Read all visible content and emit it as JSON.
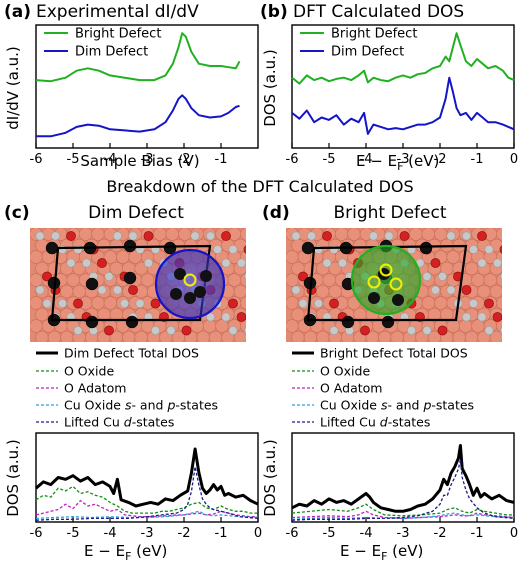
{
  "section_title": "Breakdown of the DFT Calculated DOS",
  "colors": {
    "bright": "#22b022",
    "dim": "#1414c8",
    "total": "#000000",
    "o_oxide": "#109010",
    "o_adatom": "#c020c0",
    "cu_sp": "#2ea0e0",
    "cu_d": "#1a1a8a"
  },
  "images": {
    "c_label": "Dim Defect",
    "d_label": "Bright Defect"
  },
  "chart_data": [
    {
      "id": "a",
      "type": "line",
      "panel_letter": "(a)",
      "title": "Experimental dI/dV",
      "xlabel": "Sample Bias (V)",
      "ylabel": "dI/dV (a.u.)",
      "xlim": [
        -6,
        0
      ],
      "xticks": [
        "-6",
        "-5",
        "-4",
        "-3",
        "-2",
        "-1"
      ],
      "xtick_values": [
        -6,
        -5,
        -4,
        -3,
        -2,
        -1
      ],
      "yticks": false,
      "legend": "top-left",
      "series": [
        {
          "name": "Bright Defect",
          "color": "#22b022",
          "x": [
            -6.0,
            -5.6,
            -5.2,
            -4.9,
            -4.6,
            -4.3,
            -4.0,
            -3.6,
            -3.2,
            -2.8,
            -2.5,
            -2.3,
            -2.15,
            -2.05,
            -1.95,
            -1.8,
            -1.6,
            -1.3,
            -1.0,
            -0.8,
            -0.6,
            -0.5
          ],
          "y": [
            0.58,
            0.57,
            0.6,
            0.66,
            0.68,
            0.66,
            0.62,
            0.6,
            0.58,
            0.58,
            0.62,
            0.72,
            0.86,
            0.98,
            0.95,
            0.82,
            0.72,
            0.7,
            0.7,
            0.69,
            0.68,
            0.74
          ]
        },
        {
          "name": "Dim Defect",
          "color": "#1414c8",
          "x": [
            -6.0,
            -5.6,
            -5.2,
            -4.9,
            -4.6,
            -4.3,
            -4.0,
            -3.6,
            -3.2,
            -2.8,
            -2.5,
            -2.3,
            -2.15,
            -2.05,
            -1.95,
            -1.8,
            -1.6,
            -1.3,
            -1.0,
            -0.8,
            -0.6,
            -0.5
          ],
          "y": [
            0.1,
            0.1,
            0.13,
            0.18,
            0.2,
            0.19,
            0.16,
            0.15,
            0.14,
            0.16,
            0.22,
            0.32,
            0.42,
            0.45,
            0.42,
            0.34,
            0.28,
            0.26,
            0.27,
            0.3,
            0.35,
            0.36
          ]
        }
      ]
    },
    {
      "id": "b",
      "type": "line",
      "panel_letter": "(b)",
      "title": "DFT Calculated DOS",
      "xlabel": "E − E_F (eV)",
      "xlabel_main": "E − E",
      "xlabel_sub": "F",
      "xlabel_tail": " (eV)",
      "ylabel": "DOS (a.u.)",
      "xlim": [
        -6,
        0
      ],
      "xticks": [
        "-6",
        "-5",
        "-4",
        "-3",
        "-2",
        "-1",
        "0"
      ],
      "xtick_values": [
        -6,
        -5,
        -4,
        -3,
        -2,
        -1,
        0
      ],
      "yticks": false,
      "legend": "top-left",
      "series": [
        {
          "name": "Bright Defect",
          "color": "#22b022",
          "x": [
            -6.0,
            -5.8,
            -5.6,
            -5.4,
            -5.2,
            -5.0,
            -4.8,
            -4.6,
            -4.4,
            -4.2,
            -4.05,
            -3.95,
            -3.8,
            -3.6,
            -3.4,
            -3.2,
            -3.0,
            -2.8,
            -2.6,
            -2.4,
            -2.2,
            -2.0,
            -1.85,
            -1.75,
            -1.65,
            -1.55,
            -1.45,
            -1.3,
            -1.15,
            -1.0,
            -0.85,
            -0.7,
            -0.5,
            -0.3,
            -0.15,
            0.0
          ],
          "y": [
            0.6,
            0.55,
            0.62,
            0.58,
            0.6,
            0.57,
            0.59,
            0.6,
            0.58,
            0.62,
            0.66,
            0.56,
            0.6,
            0.58,
            0.57,
            0.6,
            0.62,
            0.6,
            0.63,
            0.64,
            0.68,
            0.7,
            0.78,
            0.74,
            0.86,
            0.98,
            0.88,
            0.74,
            0.7,
            0.76,
            0.72,
            0.68,
            0.7,
            0.66,
            0.6,
            0.58
          ]
        },
        {
          "name": "Dim Defect",
          "color": "#1414c8",
          "x": [
            -6.0,
            -5.8,
            -5.6,
            -5.4,
            -5.2,
            -5.0,
            -4.8,
            -4.6,
            -4.4,
            -4.2,
            -4.05,
            -3.95,
            -3.8,
            -3.6,
            -3.4,
            -3.2,
            -3.0,
            -2.8,
            -2.6,
            -2.4,
            -2.2,
            -2.0,
            -1.85,
            -1.75,
            -1.65,
            -1.55,
            -1.45,
            -1.3,
            -1.15,
            -1.0,
            -0.85,
            -0.7,
            -0.5,
            -0.3,
            -0.15,
            0.0
          ],
          "y": [
            0.3,
            0.25,
            0.32,
            0.22,
            0.26,
            0.24,
            0.28,
            0.2,
            0.25,
            0.22,
            0.3,
            0.12,
            0.2,
            0.18,
            0.16,
            0.17,
            0.16,
            0.18,
            0.2,
            0.2,
            0.22,
            0.26,
            0.42,
            0.6,
            0.48,
            0.34,
            0.28,
            0.3,
            0.24,
            0.3,
            0.26,
            0.22,
            0.22,
            0.2,
            0.18,
            0.16
          ]
        }
      ]
    },
    {
      "id": "c",
      "type": "line",
      "panel_letter": "(c)",
      "title": "Dim Defect",
      "xlabel": "E − E_F (eV)",
      "xlabel_main": "E − E",
      "xlabel_sub": "F",
      "xlabel_tail": " (eV)",
      "ylabel": "DOS (a.u.)",
      "xlim": [
        -6,
        0
      ],
      "xticks": [
        "-6",
        "-5",
        "-4",
        "-3",
        "-2",
        "-1",
        "0"
      ],
      "xtick_values": [
        -6,
        -5,
        -4,
        -3,
        -2,
        -1,
        0
      ],
      "yticks": false,
      "legend": "above plot",
      "series": [
        {
          "name": "Dim Defect Total DOS",
          "color": "#000000",
          "width": 3,
          "dash": "",
          "x": [
            -6.0,
            -5.8,
            -5.6,
            -5.4,
            -5.2,
            -5.0,
            -4.8,
            -4.6,
            -4.4,
            -4.2,
            -4.0,
            -3.9,
            -3.8,
            -3.7,
            -3.5,
            -3.3,
            -3.1,
            -2.9,
            -2.7,
            -2.5,
            -2.3,
            -2.1,
            -1.9,
            -1.8,
            -1.7,
            -1.6,
            -1.5,
            -1.4,
            -1.3,
            -1.2,
            -1.1,
            -1.0,
            -0.9,
            -0.8,
            -0.6,
            -0.4,
            -0.2,
            0.0
          ],
          "y": [
            0.38,
            0.45,
            0.42,
            0.5,
            0.48,
            0.52,
            0.46,
            0.5,
            0.42,
            0.45,
            0.4,
            0.32,
            0.48,
            0.25,
            0.22,
            0.18,
            0.2,
            0.22,
            0.2,
            0.26,
            0.24,
            0.3,
            0.35,
            0.55,
            0.82,
            0.56,
            0.38,
            0.32,
            0.36,
            0.42,
            0.36,
            0.4,
            0.3,
            0.32,
            0.28,
            0.3,
            0.24,
            0.2
          ]
        },
        {
          "name": "O Oxide",
          "color": "#109010",
          "width": 1.3,
          "dash": "3,2",
          "x": [
            -6.0,
            -5.8,
            -5.6,
            -5.4,
            -5.2,
            -5.0,
            -4.8,
            -4.6,
            -4.4,
            -4.2,
            -4.0,
            -3.8,
            -3.6,
            -3.4,
            -3.2,
            -3.0,
            -2.8,
            -2.6,
            -2.4,
            -2.2,
            -2.0,
            -1.8,
            -1.6,
            -1.4,
            -1.2,
            -1.0,
            -0.8,
            -0.6,
            -0.4,
            -0.2,
            0.0
          ],
          "y": [
            0.25,
            0.3,
            0.28,
            0.38,
            0.35,
            0.4,
            0.32,
            0.34,
            0.3,
            0.28,
            0.22,
            0.18,
            0.12,
            0.1,
            0.1,
            0.1,
            0.1,
            0.12,
            0.12,
            0.14,
            0.16,
            0.2,
            0.22,
            0.16,
            0.14,
            0.18,
            0.14,
            0.12,
            0.12,
            0.1,
            0.1
          ]
        },
        {
          "name": "O Adatom",
          "color": "#c020c0",
          "width": 1.3,
          "dash": "3,2",
          "x": [
            -6.0,
            -5.8,
            -5.6,
            -5.4,
            -5.2,
            -5.0,
            -4.8,
            -4.6,
            -4.4,
            -4.2,
            -4.0,
            -3.8,
            -3.6,
            -3.4,
            -3.2,
            -3.0,
            -2.8,
            -2.6,
            -2.4,
            -2.2,
            -2.0,
            -1.8,
            -1.6,
            -1.4,
            -1.2,
            -1.0,
            -0.8,
            -0.6,
            -0.4,
            -0.2,
            0.0
          ],
          "y": [
            0.08,
            0.1,
            0.12,
            0.14,
            0.2,
            0.15,
            0.24,
            0.18,
            0.2,
            0.16,
            0.12,
            0.14,
            0.08,
            0.07,
            0.06,
            0.06,
            0.06,
            0.07,
            0.07,
            0.08,
            0.08,
            0.09,
            0.1,
            0.08,
            0.09,
            0.12,
            0.1,
            0.08,
            0.07,
            0.06,
            0.06
          ]
        },
        {
          "name": "Cu Oxide s- and p-states",
          "color": "#2ea0e0",
          "width": 1.3,
          "dash": "3,2",
          "x": [
            -6.0,
            -5.5,
            -5.0,
            -4.5,
            -4.0,
            -3.5,
            -3.0,
            -2.5,
            -2.0,
            -1.8,
            -1.6,
            -1.4,
            -1.2,
            -1.0,
            -0.5,
            0.0
          ],
          "y": [
            0.04,
            0.05,
            0.06,
            0.05,
            0.06,
            0.05,
            0.05,
            0.06,
            0.08,
            0.1,
            0.12,
            0.08,
            0.07,
            0.08,
            0.06,
            0.05
          ]
        },
        {
          "name": "Lifted Cu d-states",
          "color": "#1a1a8a",
          "width": 1.3,
          "dash": "3,2",
          "x": [
            -6.0,
            -5.5,
            -5.0,
            -4.5,
            -4.0,
            -3.5,
            -3.0,
            -2.6,
            -2.2,
            -2.0,
            -1.9,
            -1.8,
            -1.7,
            -1.6,
            -1.5,
            -1.4,
            -1.3,
            -1.2,
            -1.0,
            -0.8,
            -0.5,
            0.0
          ],
          "y": [
            0.02,
            0.03,
            0.03,
            0.04,
            0.04,
            0.04,
            0.06,
            0.08,
            0.1,
            0.14,
            0.2,
            0.34,
            0.62,
            0.42,
            0.26,
            0.2,
            0.16,
            0.14,
            0.12,
            0.1,
            0.06,
            0.04
          ]
        }
      ]
    },
    {
      "id": "d",
      "type": "line",
      "panel_letter": "(d)",
      "title": "Bright Defect",
      "xlabel": "E − E_F (eV)",
      "xlabel_main": "E − E",
      "xlabel_sub": "F",
      "xlabel_tail": " (eV)",
      "ylabel": "DOS (a.u.)",
      "xlim": [
        -6,
        0
      ],
      "xticks": [
        "-6",
        "-5",
        "-4",
        "-3",
        "-2",
        "-1",
        "0"
      ],
      "xtick_values": [
        -6,
        -5,
        -4,
        -3,
        -2,
        -1,
        0
      ],
      "yticks": false,
      "legend": "above plot",
      "series": [
        {
          "name": "Bright Defect Total DOS",
          "color": "#000000",
          "width": 3,
          "dash": "",
          "x": [
            -6.0,
            -5.8,
            -5.6,
            -5.4,
            -5.2,
            -5.0,
            -4.8,
            -4.6,
            -4.4,
            -4.2,
            -4.0,
            -3.9,
            -3.8,
            -3.6,
            -3.4,
            -3.2,
            -3.0,
            -2.8,
            -2.6,
            -2.4,
            -2.2,
            -2.0,
            -1.9,
            -1.8,
            -1.7,
            -1.6,
            -1.5,
            -1.45,
            -1.4,
            -1.3,
            -1.2,
            -1.1,
            -1.0,
            -0.9,
            -0.8,
            -0.6,
            -0.4,
            -0.2,
            0.0
          ],
          "y": [
            0.16,
            0.2,
            0.18,
            0.24,
            0.2,
            0.26,
            0.22,
            0.24,
            0.2,
            0.26,
            0.32,
            0.28,
            0.22,
            0.16,
            0.14,
            0.12,
            0.12,
            0.14,
            0.18,
            0.2,
            0.26,
            0.36,
            0.48,
            0.42,
            0.55,
            0.62,
            0.72,
            0.86,
            0.6,
            0.52,
            0.42,
            0.3,
            0.38,
            0.28,
            0.32,
            0.26,
            0.3,
            0.24,
            0.22
          ]
        },
        {
          "name": "O Oxide",
          "color": "#109010",
          "width": 1.3,
          "dash": "3,2",
          "x": [
            -6.0,
            -5.5,
            -5.0,
            -4.5,
            -4.2,
            -4.0,
            -3.8,
            -3.5,
            -3.0,
            -2.5,
            -2.0,
            -1.8,
            -1.6,
            -1.4,
            -1.2,
            -1.0,
            -0.8,
            -0.5,
            -0.2,
            0.0
          ],
          "y": [
            0.1,
            0.12,
            0.14,
            0.12,
            0.16,
            0.2,
            0.14,
            0.08,
            0.07,
            0.08,
            0.1,
            0.14,
            0.16,
            0.12,
            0.1,
            0.14,
            0.12,
            0.1,
            0.08,
            0.08
          ]
        },
        {
          "name": "O Adatom",
          "color": "#c020c0",
          "width": 1.3,
          "dash": "3,2",
          "x": [
            -6.0,
            -5.5,
            -5.0,
            -4.5,
            -4.2,
            -4.0,
            -3.8,
            -3.5,
            -3.0,
            -2.5,
            -2.0,
            -1.8,
            -1.6,
            -1.4,
            -1.2,
            -1.0,
            -0.8,
            -0.5,
            -0.2,
            0.0
          ],
          "y": [
            0.05,
            0.06,
            0.07,
            0.06,
            0.08,
            0.12,
            0.08,
            0.05,
            0.04,
            0.05,
            0.06,
            0.07,
            0.08,
            0.07,
            0.07,
            0.1,
            0.08,
            0.07,
            0.06,
            0.05
          ]
        },
        {
          "name": "Cu Oxide s- and p-states",
          "color": "#2ea0e0",
          "width": 1.3,
          "dash": "3,2",
          "x": [
            -6.0,
            -5.5,
            -5.0,
            -4.5,
            -4.0,
            -3.5,
            -3.0,
            -2.5,
            -2.0,
            -1.8,
            -1.6,
            -1.4,
            -1.2,
            -1.0,
            -0.5,
            0.0
          ],
          "y": [
            0.03,
            0.04,
            0.05,
            0.04,
            0.05,
            0.04,
            0.04,
            0.05,
            0.07,
            0.09,
            0.1,
            0.08,
            0.07,
            0.08,
            0.06,
            0.05
          ]
        },
        {
          "name": "Lifted Cu d-states",
          "color": "#1a1a8a",
          "width": 1.3,
          "dash": "3,2",
          "x": [
            -6.0,
            -5.5,
            -5.0,
            -4.5,
            -4.0,
            -3.5,
            -3.0,
            -2.6,
            -2.2,
            -2.0,
            -1.9,
            -1.8,
            -1.7,
            -1.6,
            -1.5,
            -1.45,
            -1.4,
            -1.3,
            -1.2,
            -1.0,
            -0.8,
            -0.5,
            0.0
          ],
          "y": [
            0.02,
            0.03,
            0.03,
            0.03,
            0.04,
            0.04,
            0.05,
            0.07,
            0.12,
            0.2,
            0.3,
            0.3,
            0.42,
            0.5,
            0.6,
            0.7,
            0.5,
            0.36,
            0.26,
            0.16,
            0.1,
            0.06,
            0.04
          ]
        }
      ]
    }
  ]
}
